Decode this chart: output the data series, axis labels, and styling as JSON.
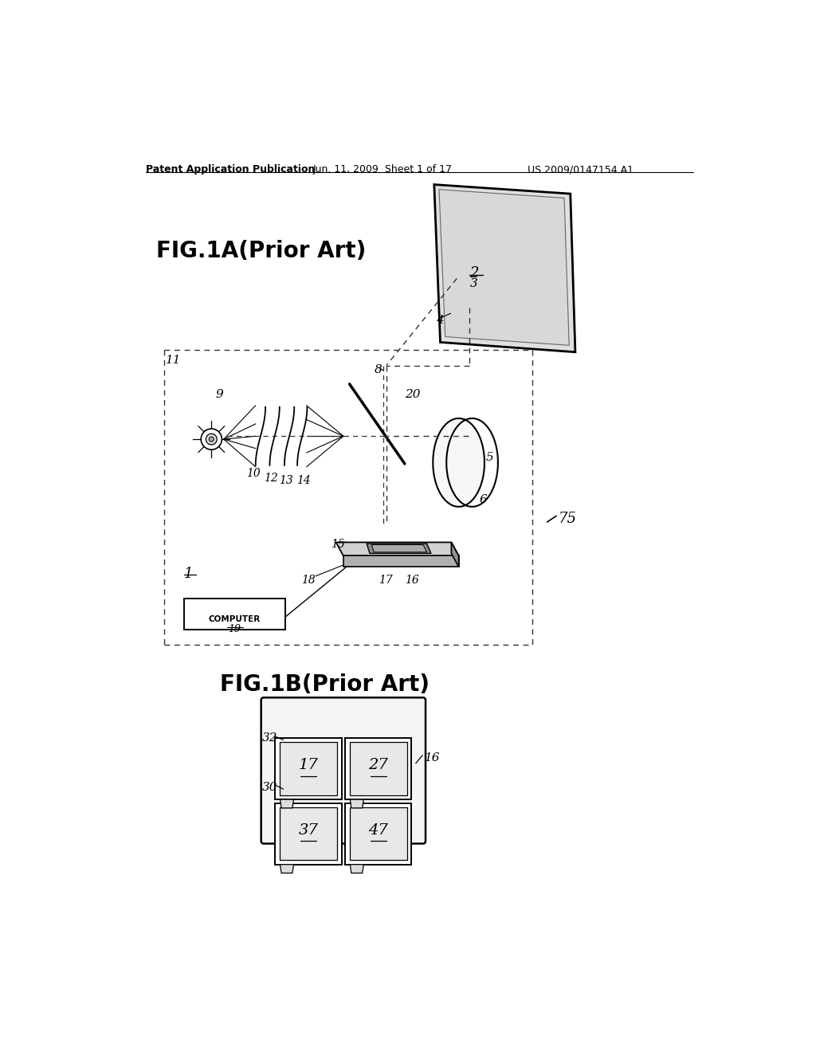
{
  "bg_color": "#ffffff",
  "header_text": "Patent Application Publication",
  "header_date": "Jun. 11, 2009  Sheet 1 of 17",
  "header_patent": "US 2009/0147154 A1",
  "fig1a_title": "FIG.1A(Prior Art)",
  "fig1b_title": "FIG.1B(Prior Art)",
  "text_color": "#000000",
  "line_color": "#000000"
}
